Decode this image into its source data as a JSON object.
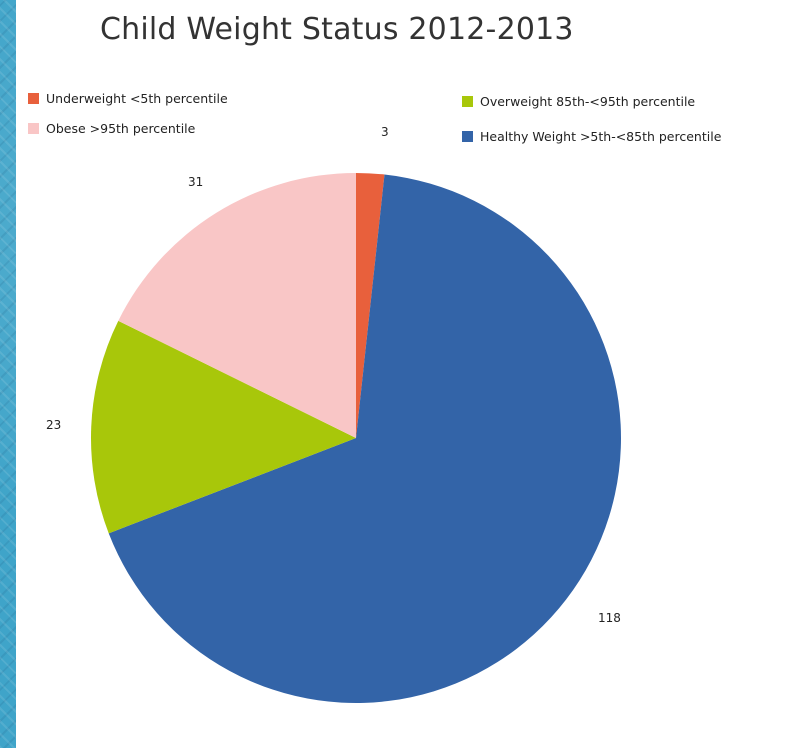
{
  "chart_data": {
    "type": "pie",
    "title": "Child Weight Status 2012-2013",
    "slices": [
      {
        "label": "Underweight <5th percentile",
        "value": 3,
        "color": "#e8603c"
      },
      {
        "label": "Healthy Weight >5th-<85th percentile",
        "value": 118,
        "color": "#3364a8"
      },
      {
        "label": "Overweight 85th-<95th percentile",
        "value": 23,
        "color": "#a8c70a"
      },
      {
        "label": "Obese >95th percentile",
        "value": 31,
        "color": "#f9c6c6"
      }
    ],
    "legend_order": [
      0,
      3,
      2,
      1
    ],
    "start_angle_deg": 0,
    "direction": "clockwise",
    "data_labels": true,
    "legend_position": "top"
  }
}
